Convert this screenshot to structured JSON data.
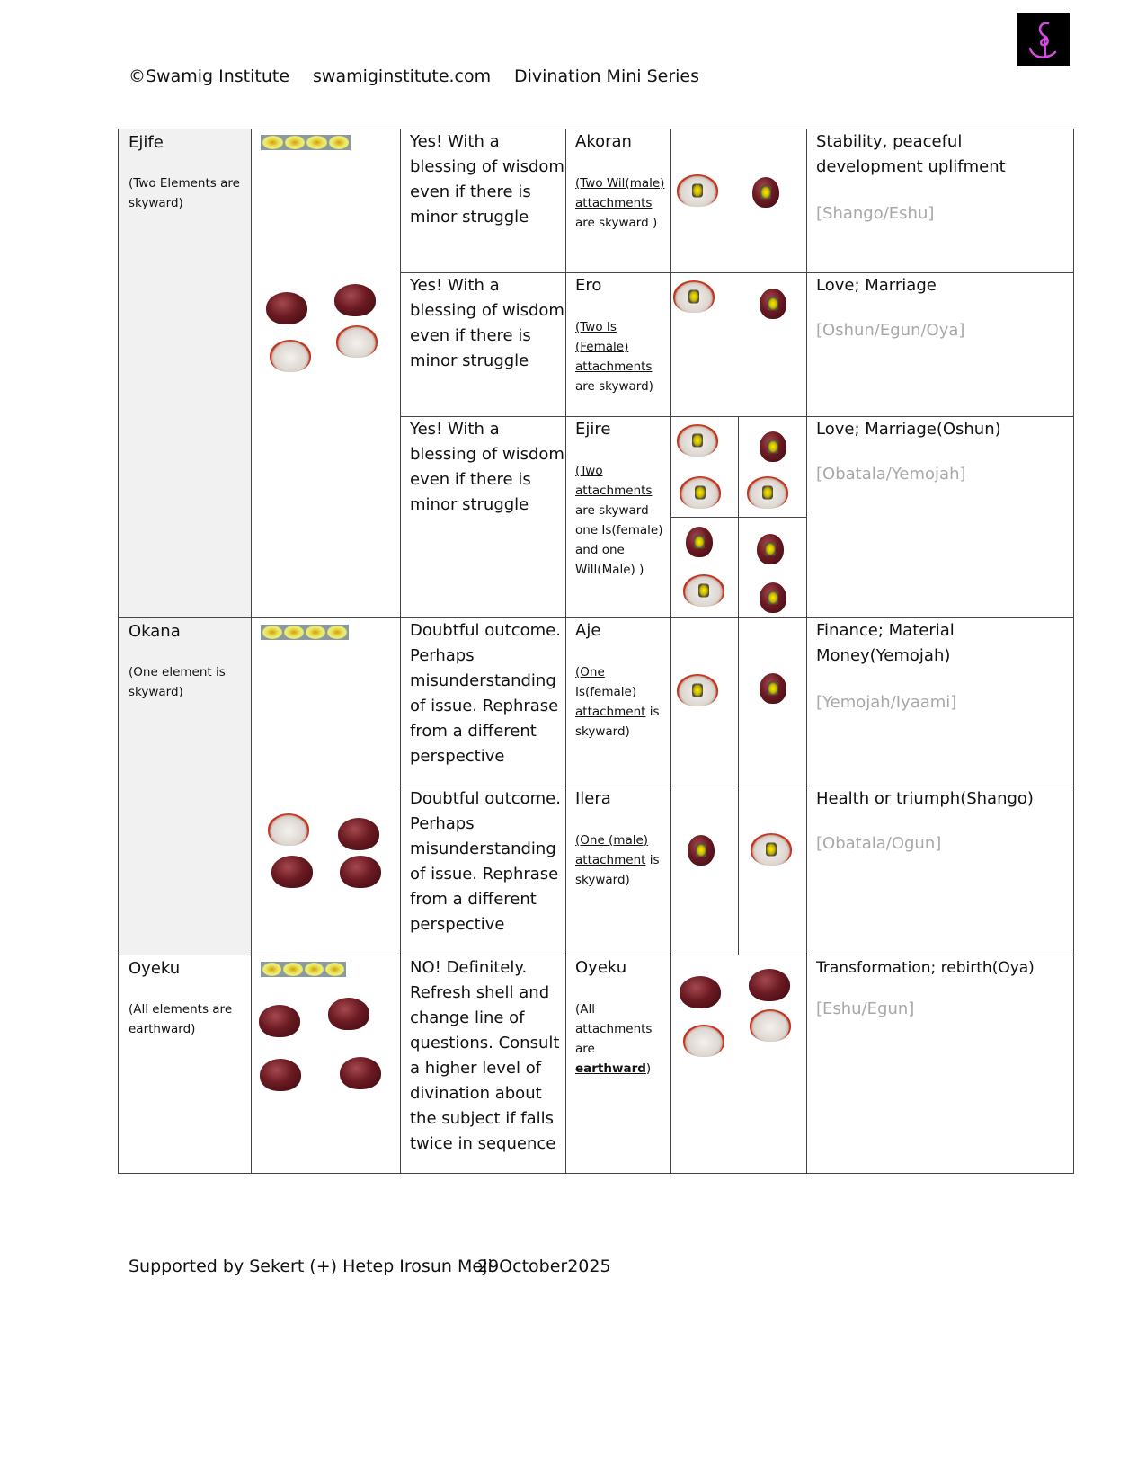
{
  "header": {
    "copyright": "©Swamig Institute",
    "website": "swamiginstitute.com",
    "series": "Divination Mini Series"
  },
  "groups": [
    {
      "name": "Ejife",
      "note": "(Two Elements are skyward)"
    },
    {
      "name": "Okana",
      "note": "(One element is skyward)"
    },
    {
      "name": "Oyeku",
      "note": "(All elements are earthward)"
    }
  ],
  "rows": [
    {
      "answer": "Yes! With a blessing of wisdom even if there is minor struggle",
      "name": "Akoran",
      "desc_u": "(Two Wil(male) attachments",
      "desc": "are skyward )",
      "meaning": "Stability, peaceful development uplifment",
      "orisha": "[Shango/Eshu]"
    },
    {
      "answer": "Yes! With a blessing of wisdom even if there is minor struggle",
      "name": "Ero",
      "desc_u": "(Two Is (Female) attachments",
      "desc": "are skyward)",
      "meaning": "Love; Marriage",
      "orisha": "[Oshun/Egun/Oya]"
    },
    {
      "answer": "Yes! With a blessing of wisdom even if there is minor struggle",
      "name": "Ejire",
      "desc_u": "(Two attachments",
      "desc": "are skyward one Is(female) and one Will(Male)  )",
      "meaning": "Love; Marriage(Oshun)",
      "orisha": "[Obatala/Yemojah]"
    },
    {
      "answer": "Doubtful outcome. Perhaps misunderstanding of issue. Rephrase from a different perspective",
      "name": "Aje",
      "desc_u": "(One Is(female) attachment",
      "desc": "is skyward)",
      "meaning": "Finance; Material Money(Yemojah)",
      "orisha": "[Yemojah/Iyaami]"
    },
    {
      "answer": "Doubtful outcome. Perhaps misunderstanding of issue. Rephrase from a different perspective",
      "name": "Ilera",
      "desc_u": "(One (male) attachment",
      "desc": "is skyward)",
      "meaning": "Health or triumph(Shango)",
      "orisha": "[Obatala/Ogun]"
    },
    {
      "answer": "NO! Definitely. Refresh shell and change line of questions. Consult a higher level of divination about the subject if falls twice in sequence",
      "name": "Oyeku",
      "desc_pre": "(All attachments are",
      "desc_b": "earthward",
      "desc_post": ")",
      "meaning": "Transformation; rebirth(Oya)",
      "orisha": "[Eshu/Egun]"
    }
  ],
  "footer": {
    "support": "Supported by Sekert (+) Hetep Irosun Meji",
    "date": "29October2025"
  },
  "colors": {
    "border": "#444444",
    "group_bg": "#f1f1f1",
    "orisha_text": "#a8a8a8",
    "logo_bg": "#000000",
    "logo_stroke": "#d54ee0"
  }
}
